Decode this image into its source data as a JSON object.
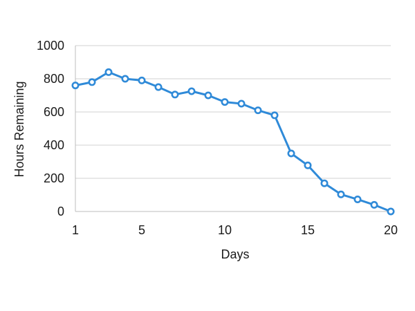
{
  "chart_data": {
    "type": "line",
    "title": "",
    "xlabel": "Days",
    "ylabel": "Hours Remaining",
    "xlim": [
      1,
      20
    ],
    "ylim": [
      0,
      1000
    ],
    "x_ticks": [
      1,
      5,
      10,
      15,
      20
    ],
    "y_ticks": [
      0,
      200,
      400,
      600,
      800,
      1000
    ],
    "grid": "horizontal",
    "series": [
      {
        "color": "#2f8ad8",
        "x": [
          1,
          2,
          3,
          4,
          5,
          6,
          7,
          8,
          9,
          10,
          11,
          12,
          13,
          14,
          15,
          16,
          17,
          18,
          19,
          20
        ],
        "y": [
          760,
          780,
          840,
          800,
          790,
          750,
          705,
          725,
          700,
          660,
          650,
          610,
          580,
          350,
          278,
          170,
          103,
          73,
          40,
          0
        ]
      }
    ]
  }
}
